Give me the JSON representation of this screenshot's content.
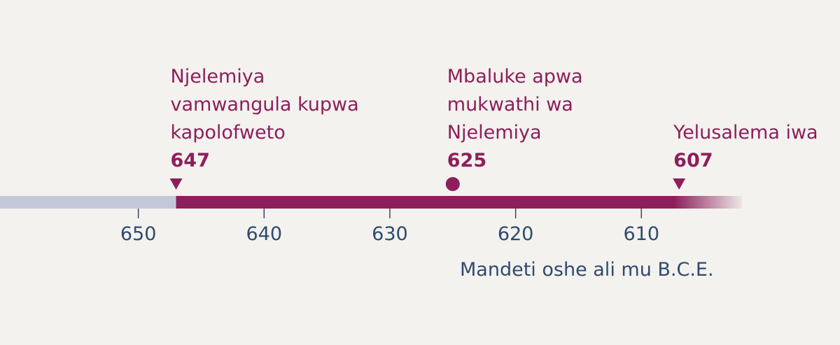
{
  "chart_data": {
    "type": "timeline",
    "xlim": [
      661,
      602
    ],
    "xticks": [
      650,
      640,
      630,
      620,
      610
    ],
    "xlabel": "Mandeti oshe ali mu B.C.E.",
    "events": [
      {
        "label": "Njelemiya vamwangula kupwa kapolofweto",
        "year": 647,
        "shape": "triangle"
      },
      {
        "label": "Mbaluke apwa mukwathi wa Njelemiya",
        "year": 625,
        "shape": "circle"
      },
      {
        "label": "Yelusalema iwa",
        "year": 607,
        "shape": "triangle"
      }
    ],
    "color": "#8c1f5b",
    "before_color": "#c3c8d8",
    "tick_color": "#2f4a70"
  }
}
